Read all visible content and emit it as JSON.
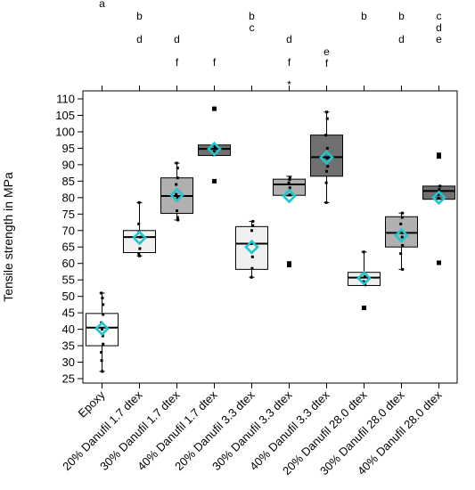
{
  "chart_data": {
    "type": "box",
    "title": "",
    "xlabel": "",
    "ylabel": "Tensile strength in MPa",
    "ylim": [
      25,
      110
    ],
    "yticks": [
      25,
      30,
      35,
      40,
      45,
      50,
      55,
      60,
      65,
      70,
      75,
      80,
      85,
      90,
      95,
      100,
      105,
      110
    ],
    "grid": false,
    "categories": [
      "Epoxy",
      "20% Danufil 1.7 dtex",
      "30% Danufil 1.7 dtex",
      "40% Danufil 1.7 dtex",
      "20% Danufil 3.3 dtex",
      "30% Danufil 3.3 dtex",
      "40% Danufil 3.3 dtex",
      "20% Danufil 28.0 dtex",
      "30% Danufil 28.0 dtex",
      "40% Danufil 28.0 dtex"
    ],
    "box_fill": [
      "#ffffff",
      "#f0f0f0",
      "#b0b0b0",
      "#707070",
      "#f0f0f0",
      "#b0b0b0",
      "#707070",
      "#f0f0f0",
      "#b0b0b0",
      "#707070"
    ],
    "mean_marker_color": "#1fc6d0",
    "boxes": [
      {
        "whisker_low": 27.2,
        "q1": 35.0,
        "median": 40.5,
        "q3": 44.8,
        "whisker_high": 51.0,
        "mean": 40.2,
        "points": [
          27.2,
          30.5,
          33.0,
          35.5,
          38.0,
          40.0,
          42.0,
          44.5,
          47.5,
          49.5,
          51.0
        ],
        "outliers": []
      },
      {
        "whisker_low": 62.3,
        "q1": 63.3,
        "median": 68.0,
        "q3": 70.0,
        "whisker_high": 78.5,
        "mean": 67.8,
        "points": [
          62.3,
          63.0,
          64.5,
          68.0,
          69.5,
          72.0,
          78.5
        ],
        "outliers": []
      },
      {
        "whisker_low": 73.2,
        "q1": 75.2,
        "median": 80.5,
        "q3": 86.0,
        "whisker_high": 90.5,
        "mean": 80.8,
        "points": [
          73.2,
          74.0,
          76.0,
          80.0,
          81.0,
          84.0,
          86.0,
          89.0,
          90.5
        ],
        "outliers": []
      },
      {
        "whisker_low": 92.8,
        "q1": 92.8,
        "median": 94.8,
        "q3": 96.0,
        "whisker_high": 96.0,
        "mean": 94.8,
        "points": [
          93.0,
          94.0,
          95.0,
          95.5,
          96.0
        ],
        "outliers": [
          107.0,
          85.0
        ]
      },
      {
        "whisker_low": 55.8,
        "q1": 58.2,
        "median": 66.0,
        "q3": 71.2,
        "whisker_high": 72.8,
        "mean": 65.0,
        "points": [
          55.8,
          58.5,
          62.0,
          66.0,
          70.0,
          71.5,
          72.8
        ],
        "outliers": []
      },
      {
        "whisker_low": 80.5,
        "q1": 80.7,
        "median": 84.0,
        "q3": 85.6,
        "whisker_high": 86.5,
        "mean": 80.5,
        "points": [
          80.8,
          83.0,
          84.5,
          85.5,
          86.0
        ],
        "outliers": [
          60.0,
          59.5
        ]
      },
      {
        "whisker_low": 78.5,
        "q1": 86.5,
        "median": 92.3,
        "q3": 99.0,
        "whisker_high": 106.0,
        "mean": 92.2,
        "points": [
          78.5,
          84.5,
          88.0,
          89.5,
          92.0,
          95.0,
          99.0,
          104.0,
          106.0
        ],
        "outliers": []
      },
      {
        "whisker_low": 53.3,
        "q1": 53.3,
        "median": 55.7,
        "q3": 57.3,
        "whisker_high": 63.5,
        "mean": 55.5,
        "points": [
          53.5,
          54.5,
          56.0,
          57.0,
          63.5
        ],
        "outliers": [
          46.5
        ]
      },
      {
        "whisker_low": 58.2,
        "q1": 65.0,
        "median": 69.3,
        "q3": 74.2,
        "whisker_high": 75.3,
        "mean": 68.5,
        "points": [
          58.2,
          63.0,
          65.5,
          68.0,
          69.3,
          72.0,
          74.0,
          75.3
        ],
        "outliers": []
      },
      {
        "whisker_low": 79.5,
        "q1": 79.5,
        "median": 82.0,
        "q3": 83.5,
        "whisker_high": 83.5,
        "mean": 80.0,
        "points": [
          79.8,
          81.0,
          82.5,
          83.5
        ],
        "outliers": [
          93.0,
          92.5,
          60.2
        ]
      }
    ],
    "significance_letters": [
      {
        "row1": "a",
        "row2": "",
        "row3": "",
        "row4": "",
        "row5": ""
      },
      {
        "row1": "",
        "row2": "b",
        "row3": "d",
        "row4": "",
        "row5": ""
      },
      {
        "row1": "",
        "row2": "",
        "row3": "d",
        "row4": "f",
        "row5": ""
      },
      {
        "row1": "",
        "row2": "",
        "row3": "",
        "row4": "f",
        "row5": ""
      },
      {
        "row1": "",
        "row2": "b c",
        "row3": "",
        "row4": "",
        "row5": ""
      },
      {
        "row1": "",
        "row2": "",
        "row3": "d",
        "row4": "f",
        "row5": "*"
      },
      {
        "row1": "",
        "row2": "",
        "row3": "e",
        "row4": "f",
        "row5": ""
      },
      {
        "row1": "",
        "row2": "b",
        "row3": "",
        "row4": "",
        "row5": ""
      },
      {
        "row1": "",
        "row2": "b",
        "row3": "d",
        "row4": "",
        "row5": ""
      },
      {
        "row1": "",
        "row2": "c d e",
        "row3": "",
        "row4": "",
        "row5": ""
      }
    ]
  }
}
